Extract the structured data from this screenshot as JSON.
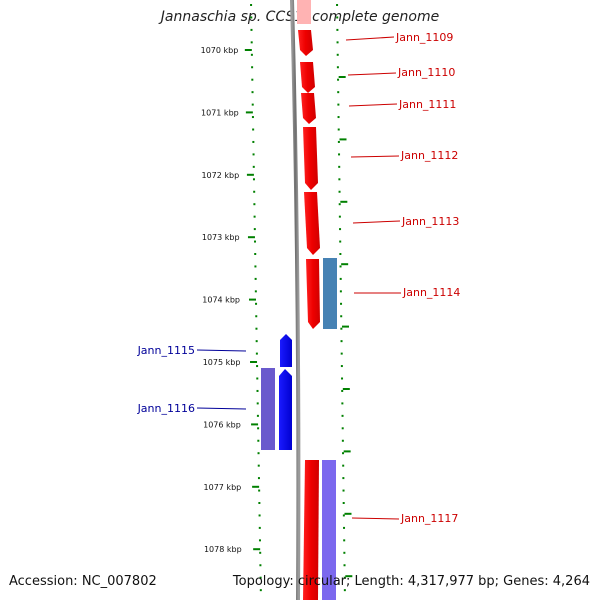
{
  "title": "Jannaschia sp. CCS1, complete genome",
  "accession": "Accession: NC_007802",
  "topology": "Topology: circular; Length: 4,317,977 bp; Genes: 4,264",
  "ruler_labels": [
    "1070 kbp",
    "1071 kbp",
    "1072 kbp",
    "1073 kbp",
    "1074 kbp",
    "1075 kbp",
    "1076 kbp",
    "1077 kbp",
    "1078 kbp"
  ],
  "genes": [
    {
      "name": "Jann_1109",
      "strand": "forward"
    },
    {
      "name": "Jann_1110",
      "strand": "forward"
    },
    {
      "name": "Jann_1111",
      "strand": "forward"
    },
    {
      "name": "Jann_1112",
      "strand": "forward"
    },
    {
      "name": "Jann_1113",
      "strand": "forward"
    },
    {
      "name": "Jann_1114",
      "strand": "forward"
    },
    {
      "name": "Jann_1115",
      "strand": "reverse"
    },
    {
      "name": "Jann_1116",
      "strand": "reverse"
    },
    {
      "name": "Jann_1117",
      "strand": "forward"
    }
  ],
  "colors": {
    "forward_gene": "#ff0000",
    "forward_cds_steel": "#4682b4",
    "forward_cds_purple": "#7b68ee",
    "reverse_gene": "#0000ff",
    "reverse_cds": "#6a5acd",
    "forward_label": "#cc0000",
    "reverse_label": "#000099",
    "tick": "#008000",
    "backbone": "#808080"
  }
}
